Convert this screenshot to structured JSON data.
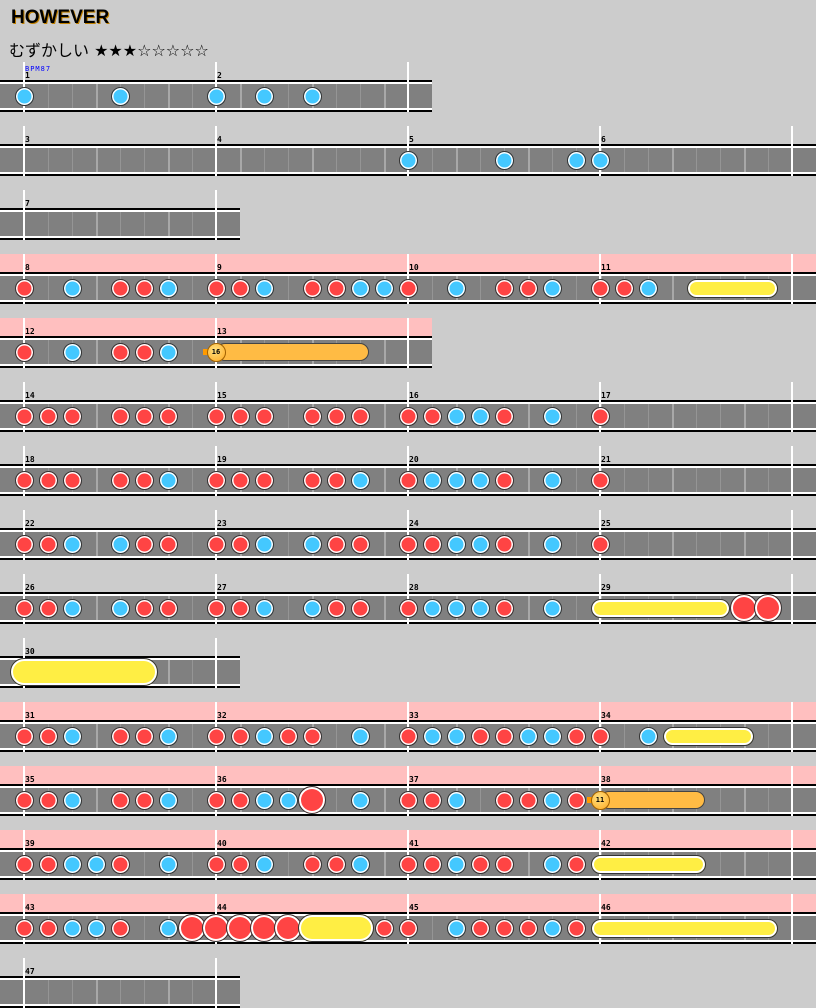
{
  "title": "HOWEVER",
  "subtitle": "むずかしい ★★★☆☆☆☆☆",
  "difficulty": {
    "label": "むずかしい",
    "stars": 3,
    "max_stars": 8
  },
  "bpm_label": "BPM87",
  "colors": {
    "background": "#cccccc",
    "don": "#ff4444",
    "ka": "#44c8ff",
    "drumroll": "#ffee44",
    "balloon": "#ffbb44",
    "gogo": "#ffbfbf",
    "lane": "#808080"
  },
  "rows": [
    {
      "first_measure": 1,
      "measure_count": 2,
      "full": false,
      "gogo": false,
      "notes": [
        {
          "s": 0,
          "t": "ka"
        },
        {
          "s": 4,
          "t": "ka"
        },
        {
          "s": 8,
          "t": "ka"
        },
        {
          "s": 10,
          "t": "ka"
        },
        {
          "s": 12,
          "t": "ka"
        }
      ]
    },
    {
      "first_measure": 3,
      "measure_count": 4,
      "full": true,
      "gogo": false,
      "notes": [
        {
          "s": 16,
          "t": "ka"
        },
        {
          "s": 20,
          "t": "ka"
        },
        {
          "s": 23,
          "t": "ka"
        },
        {
          "s": 24,
          "t": "ka"
        }
      ]
    },
    {
      "first_measure": 7,
      "measure_count": 1,
      "full": false,
      "gogo": false,
      "notes": []
    },
    {
      "first_measure": 8,
      "measure_count": 4,
      "full": true,
      "gogo": true,
      "notes": [
        {
          "s": 0,
          "t": "don"
        },
        {
          "s": 2,
          "t": "ka"
        },
        {
          "s": 4,
          "t": "don"
        },
        {
          "s": 5,
          "t": "don"
        },
        {
          "s": 6,
          "t": "ka"
        },
        {
          "s": 8,
          "t": "don"
        },
        {
          "s": 9,
          "t": "don"
        },
        {
          "s": 10,
          "t": "ka"
        },
        {
          "s": 12,
          "t": "don"
        },
        {
          "s": 13,
          "t": "don"
        },
        {
          "s": 14,
          "t": "ka"
        },
        {
          "s": 15,
          "t": "ka"
        },
        {
          "s": 16,
          "t": "don"
        },
        {
          "s": 18,
          "t": "ka"
        },
        {
          "s": 20,
          "t": "don"
        },
        {
          "s": 21,
          "t": "don"
        },
        {
          "s": 22,
          "t": "ka"
        },
        {
          "s": 24,
          "t": "don"
        },
        {
          "s": 25,
          "t": "don"
        },
        {
          "s": 26,
          "t": "ka"
        },
        {
          "s": 28,
          "e": 31,
          "t": "roll"
        }
      ]
    },
    {
      "first_measure": 12,
      "measure_count": 2,
      "full": false,
      "gogo": true,
      "notes": [
        {
          "s": 0,
          "t": "don"
        },
        {
          "s": 2,
          "t": "ka"
        },
        {
          "s": 4,
          "t": "don"
        },
        {
          "s": 5,
          "t": "don"
        },
        {
          "s": 6,
          "t": "ka"
        },
        {
          "s": 8,
          "e": 14,
          "t": "balloon",
          "count": "16"
        }
      ]
    },
    {
      "first_measure": 14,
      "measure_count": 4,
      "full": true,
      "gogo": false,
      "notes": [
        {
          "s": 0,
          "t": "don"
        },
        {
          "s": 1,
          "t": "don"
        },
        {
          "s": 2,
          "t": "don"
        },
        {
          "s": 4,
          "t": "don"
        },
        {
          "s": 5,
          "t": "don"
        },
        {
          "s": 6,
          "t": "don"
        },
        {
          "s": 8,
          "t": "don"
        },
        {
          "s": 9,
          "t": "don"
        },
        {
          "s": 10,
          "t": "don"
        },
        {
          "s": 12,
          "t": "don"
        },
        {
          "s": 13,
          "t": "don"
        },
        {
          "s": 14,
          "t": "don"
        },
        {
          "s": 16,
          "t": "don"
        },
        {
          "s": 17,
          "t": "don"
        },
        {
          "s": 18,
          "t": "ka"
        },
        {
          "s": 19,
          "t": "ka"
        },
        {
          "s": 20,
          "t": "don"
        },
        {
          "s": 22,
          "t": "ka"
        },
        {
          "s": 24,
          "t": "don"
        }
      ]
    },
    {
      "first_measure": 18,
      "measure_count": 4,
      "full": true,
      "gogo": false,
      "notes": [
        {
          "s": 0,
          "t": "don"
        },
        {
          "s": 1,
          "t": "don"
        },
        {
          "s": 2,
          "t": "don"
        },
        {
          "s": 4,
          "t": "don"
        },
        {
          "s": 5,
          "t": "don"
        },
        {
          "s": 6,
          "t": "ka"
        },
        {
          "s": 8,
          "t": "don"
        },
        {
          "s": 9,
          "t": "don"
        },
        {
          "s": 10,
          "t": "don"
        },
        {
          "s": 12,
          "t": "don"
        },
        {
          "s": 13,
          "t": "don"
        },
        {
          "s": 14,
          "t": "ka"
        },
        {
          "s": 16,
          "t": "don"
        },
        {
          "s": 17,
          "t": "ka"
        },
        {
          "s": 18,
          "t": "ka"
        },
        {
          "s": 19,
          "t": "ka"
        },
        {
          "s": 20,
          "t": "don"
        },
        {
          "s": 22,
          "t": "ka"
        },
        {
          "s": 24,
          "t": "don"
        }
      ]
    },
    {
      "first_measure": 22,
      "measure_count": 4,
      "full": true,
      "gogo": false,
      "notes": [
        {
          "s": 0,
          "t": "don"
        },
        {
          "s": 1,
          "t": "don"
        },
        {
          "s": 2,
          "t": "ka"
        },
        {
          "s": 4,
          "t": "ka"
        },
        {
          "s": 5,
          "t": "don"
        },
        {
          "s": 6,
          "t": "don"
        },
        {
          "s": 8,
          "t": "don"
        },
        {
          "s": 9,
          "t": "don"
        },
        {
          "s": 10,
          "t": "ka"
        },
        {
          "s": 12,
          "t": "ka"
        },
        {
          "s": 13,
          "t": "don"
        },
        {
          "s": 14,
          "t": "don"
        },
        {
          "s": 16,
          "t": "don"
        },
        {
          "s": 17,
          "t": "don"
        },
        {
          "s": 18,
          "t": "ka"
        },
        {
          "s": 19,
          "t": "ka"
        },
        {
          "s": 20,
          "t": "don"
        },
        {
          "s": 22,
          "t": "ka"
        },
        {
          "s": 24,
          "t": "don"
        }
      ]
    },
    {
      "first_measure": 26,
      "measure_count": 4,
      "full": true,
      "gogo": false,
      "notes": [
        {
          "s": 0,
          "t": "don"
        },
        {
          "s": 1,
          "t": "don"
        },
        {
          "s": 2,
          "t": "ka"
        },
        {
          "s": 4,
          "t": "ka"
        },
        {
          "s": 5,
          "t": "don"
        },
        {
          "s": 6,
          "t": "don"
        },
        {
          "s": 8,
          "t": "don"
        },
        {
          "s": 9,
          "t": "don"
        },
        {
          "s": 10,
          "t": "ka"
        },
        {
          "s": 12,
          "t": "ka"
        },
        {
          "s": 13,
          "t": "don"
        },
        {
          "s": 14,
          "t": "don"
        },
        {
          "s": 16,
          "t": "don"
        },
        {
          "s": 17,
          "t": "ka"
        },
        {
          "s": 18,
          "t": "ka"
        },
        {
          "s": 19,
          "t": "ka"
        },
        {
          "s": 20,
          "t": "don"
        },
        {
          "s": 22,
          "t": "ka"
        },
        {
          "s": 24,
          "e": 29,
          "t": "roll"
        },
        {
          "s": 30,
          "t": "big-don"
        },
        {
          "s": 31,
          "t": "big-don"
        }
      ]
    },
    {
      "first_measure": 30,
      "measure_count": 1,
      "full": false,
      "gogo": false,
      "notes": [
        {
          "s": 0,
          "e": 5,
          "t": "big-roll"
        }
      ]
    },
    {
      "first_measure": 31,
      "measure_count": 4,
      "full": true,
      "gogo": true,
      "notes": [
        {
          "s": 0,
          "t": "don"
        },
        {
          "s": 1,
          "t": "don"
        },
        {
          "s": 2,
          "t": "ka"
        },
        {
          "s": 4,
          "t": "don"
        },
        {
          "s": 5,
          "t": "don"
        },
        {
          "s": 6,
          "t": "ka"
        },
        {
          "s": 8,
          "t": "don"
        },
        {
          "s": 9,
          "t": "don"
        },
        {
          "s": 10,
          "t": "ka"
        },
        {
          "s": 11,
          "t": "don"
        },
        {
          "s": 12,
          "t": "don"
        },
        {
          "s": 14,
          "t": "ka"
        },
        {
          "s": 16,
          "t": "don"
        },
        {
          "s": 17,
          "t": "ka"
        },
        {
          "s": 18,
          "t": "ka"
        },
        {
          "s": 19,
          "t": "don"
        },
        {
          "s": 20,
          "t": "don"
        },
        {
          "s": 21,
          "t": "ka"
        },
        {
          "s": 22,
          "t": "ka"
        },
        {
          "s": 23,
          "t": "don"
        },
        {
          "s": 24,
          "t": "don"
        },
        {
          "s": 26,
          "t": "ka"
        },
        {
          "s": 27,
          "e": 30,
          "t": "roll"
        }
      ]
    },
    {
      "first_measure": 35,
      "measure_count": 4,
      "full": true,
      "gogo": true,
      "notes": [
        {
          "s": 0,
          "t": "don"
        },
        {
          "s": 1,
          "t": "don"
        },
        {
          "s": 2,
          "t": "ka"
        },
        {
          "s": 4,
          "t": "don"
        },
        {
          "s": 5,
          "t": "don"
        },
        {
          "s": 6,
          "t": "ka"
        },
        {
          "s": 8,
          "t": "don"
        },
        {
          "s": 9,
          "t": "don"
        },
        {
          "s": 10,
          "t": "ka"
        },
        {
          "s": 11,
          "t": "ka"
        },
        {
          "s": 12,
          "t": "big-don"
        },
        {
          "s": 14,
          "t": "ka"
        },
        {
          "s": 16,
          "t": "don"
        },
        {
          "s": 17,
          "t": "don"
        },
        {
          "s": 18,
          "t": "ka"
        },
        {
          "s": 20,
          "t": "don"
        },
        {
          "s": 21,
          "t": "don"
        },
        {
          "s": 22,
          "t": "ka"
        },
        {
          "s": 23,
          "t": "don"
        },
        {
          "s": 24,
          "e": 28,
          "t": "balloon",
          "count": "11"
        }
      ]
    },
    {
      "first_measure": 39,
      "measure_count": 4,
      "full": true,
      "gogo": true,
      "notes": [
        {
          "s": 0,
          "t": "don"
        },
        {
          "s": 1,
          "t": "don"
        },
        {
          "s": 2,
          "t": "ka"
        },
        {
          "s": 3,
          "t": "ka"
        },
        {
          "s": 4,
          "t": "don"
        },
        {
          "s": 6,
          "t": "ka"
        },
        {
          "s": 8,
          "t": "don"
        },
        {
          "s": 9,
          "t": "don"
        },
        {
          "s": 10,
          "t": "ka"
        },
        {
          "s": 12,
          "t": "don"
        },
        {
          "s": 13,
          "t": "don"
        },
        {
          "s": 14,
          "t": "ka"
        },
        {
          "s": 16,
          "t": "don"
        },
        {
          "s": 17,
          "t": "don"
        },
        {
          "s": 18,
          "t": "ka"
        },
        {
          "s": 19,
          "t": "don"
        },
        {
          "s": 20,
          "t": "don"
        },
        {
          "s": 22,
          "t": "ka"
        },
        {
          "s": 23,
          "t": "don"
        },
        {
          "s": 24,
          "e": 28,
          "t": "roll"
        }
      ]
    },
    {
      "first_measure": 43,
      "measure_count": 4,
      "full": true,
      "gogo": true,
      "notes": [
        {
          "s": 0,
          "t": "don"
        },
        {
          "s": 1,
          "t": "don"
        },
        {
          "s": 2,
          "t": "ka"
        },
        {
          "s": 3,
          "t": "ka"
        },
        {
          "s": 4,
          "t": "don"
        },
        {
          "s": 6,
          "t": "ka"
        },
        {
          "s": 7,
          "t": "big-don"
        },
        {
          "s": 8,
          "t": "big-don"
        },
        {
          "s": 9,
          "t": "big-don"
        },
        {
          "s": 10,
          "t": "big-don"
        },
        {
          "s": 11,
          "t": "big-don"
        },
        {
          "s": 12,
          "e": 14,
          "t": "big-roll"
        },
        {
          "s": 15,
          "t": "don"
        },
        {
          "s": 16,
          "t": "don"
        },
        {
          "s": 18,
          "t": "ka"
        },
        {
          "s": 19,
          "t": "don"
        },
        {
          "s": 20,
          "t": "don"
        },
        {
          "s": 21,
          "t": "don"
        },
        {
          "s": 22,
          "t": "ka"
        },
        {
          "s": 23,
          "t": "don"
        },
        {
          "s": 24,
          "e": 31,
          "t": "roll"
        }
      ]
    },
    {
      "first_measure": 47,
      "measure_count": 1,
      "full": false,
      "gogo": false,
      "notes": []
    }
  ]
}
